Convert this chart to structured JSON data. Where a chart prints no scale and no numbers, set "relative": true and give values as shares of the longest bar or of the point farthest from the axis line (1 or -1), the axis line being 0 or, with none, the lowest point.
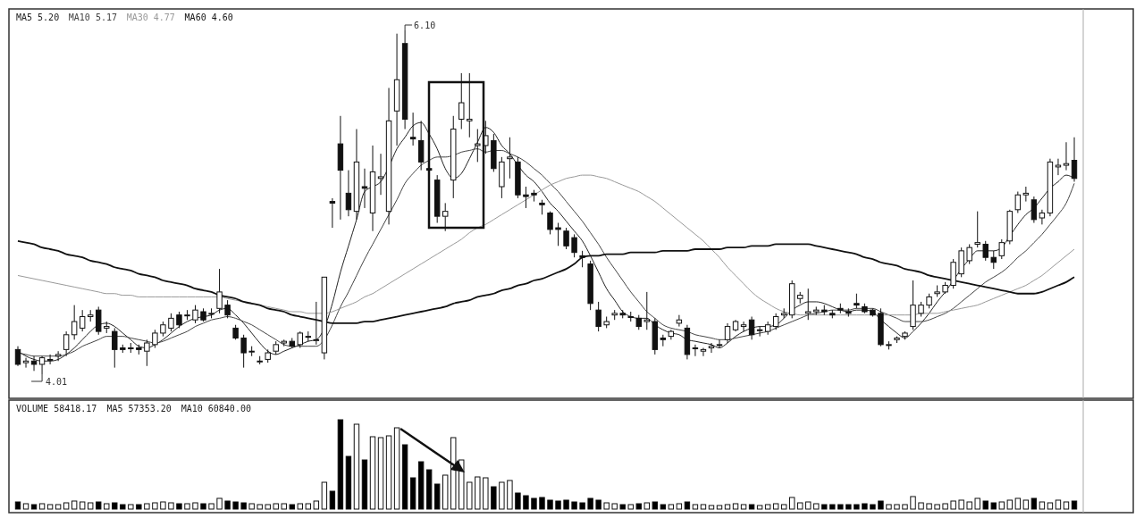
{
  "chart_data": [
    {
      "type": "candlestick",
      "categories": [
        null,
        null,
        null,
        null,
        null,
        null,
        null,
        null,
        null,
        null,
        null,
        null,
        null,
        null,
        null,
        null,
        null,
        null,
        null,
        null,
        null,
        null,
        null,
        null,
        null,
        null,
        null,
        null,
        null,
        null,
        null,
        null,
        null,
        null,
        null,
        null,
        null,
        null,
        null,
        null,
        null,
        null,
        null,
        null,
        null,
        null,
        null,
        null,
        null,
        null,
        null,
        null,
        null,
        null,
        null,
        null,
        null,
        null,
        null,
        null,
        null,
        null,
        null,
        null,
        null,
        null,
        null,
        null,
        null,
        null,
        null,
        null,
        null,
        null,
        null,
        null,
        null,
        null,
        null,
        null,
        null,
        null,
        null,
        null,
        null,
        null,
        null,
        null,
        null,
        null,
        null,
        null,
        null,
        null,
        null,
        null,
        null,
        null,
        null,
        null,
        null,
        null,
        null,
        null,
        null,
        null,
        null,
        null,
        null,
        null,
        null,
        null,
        null,
        null,
        null,
        null,
        null,
        null,
        null,
        null,
        null,
        null,
        null,
        null,
        null,
        null,
        null,
        null,
        null,
        null,
        null,
        null
      ],
      "ohlc": [
        [
          4.16,
          4.18,
          4.06,
          4.07
        ],
        [
          4.08,
          4.11,
          4.05,
          4.09
        ],
        [
          4.09,
          4.12,
          4.03,
          4.07
        ],
        [
          4.07,
          4.12,
          4.01,
          4.11
        ],
        [
          4.1,
          4.13,
          4.07,
          4.1
        ],
        [
          4.12,
          4.15,
          4.09,
          4.13
        ],
        [
          4.16,
          4.27,
          4.12,
          4.25
        ],
        [
          4.25,
          4.43,
          4.22,
          4.33
        ],
        [
          4.29,
          4.4,
          4.27,
          4.36
        ],
        [
          4.36,
          4.4,
          4.33,
          4.37
        ],
        [
          4.4,
          4.42,
          4.25,
          4.27
        ],
        [
          4.29,
          4.33,
          4.26,
          4.3
        ],
        [
          4.27,
          4.29,
          4.05,
          4.16
        ],
        [
          4.17,
          4.19,
          4.14,
          4.16
        ],
        [
          4.17,
          4.2,
          4.14,
          4.17
        ],
        [
          4.17,
          4.19,
          4.13,
          4.16
        ],
        [
          4.15,
          4.22,
          4.06,
          4.2
        ],
        [
          4.19,
          4.28,
          4.17,
          4.26
        ],
        [
          4.26,
          4.33,
          4.24,
          4.31
        ],
        [
          4.29,
          4.38,
          4.27,
          4.35
        ],
        [
          4.37,
          4.39,
          4.29,
          4.31
        ],
        [
          4.37,
          4.4,
          4.34,
          4.37
        ],
        [
          4.34,
          4.43,
          4.32,
          4.4
        ],
        [
          4.39,
          4.41,
          4.33,
          4.34
        ],
        [
          4.38,
          4.41,
          4.35,
          4.38
        ],
        [
          4.41,
          4.65,
          4.38,
          4.51
        ],
        [
          4.43,
          4.46,
          4.35,
          4.37
        ],
        [
          4.29,
          4.31,
          4.22,
          4.23
        ],
        [
          4.23,
          4.25,
          4.05,
          4.14
        ],
        [
          4.15,
          4.18,
          4.12,
          4.15
        ],
        [
          4.09,
          4.12,
          4.07,
          4.09
        ],
        [
          4.1,
          4.16,
          4.08,
          4.14
        ],
        [
          4.15,
          4.21,
          4.13,
          4.19
        ],
        [
          4.2,
          4.22,
          4.18,
          4.21
        ],
        [
          4.21,
          4.23,
          4.17,
          4.18
        ],
        [
          4.19,
          4.27,
          4.17,
          4.26
        ],
        [
          4.24,
          4.27,
          4.21,
          4.24
        ],
        [
          4.22,
          4.45,
          4.19,
          4.22
        ],
        [
          4.14,
          4.6,
          4.1,
          4.6
        ],
        [
          5.06,
          5.08,
          4.9,
          5.05
        ],
        [
          5.41,
          5.58,
          4.95,
          5.25
        ],
        [
          5.11,
          5.25,
          4.97,
          5.01
        ],
        [
          5.0,
          5.5,
          4.95,
          5.3
        ],
        [
          5.15,
          5.26,
          5.02,
          5.14
        ],
        [
          4.99,
          5.4,
          4.88,
          5.24
        ],
        [
          5.2,
          5.35,
          5.1,
          5.21
        ],
        [
          5.0,
          5.75,
          4.92,
          5.55
        ],
        [
          5.61,
          6.08,
          5.4,
          5.8
        ],
        [
          6.02,
          6.1,
          5.5,
          5.56
        ],
        [
          5.45,
          5.6,
          5.4,
          5.44
        ],
        [
          5.43,
          5.55,
          5.25,
          5.3
        ],
        [
          5.26,
          5.45,
          5.22,
          5.25
        ],
        [
          5.19,
          5.22,
          4.93,
          4.97
        ],
        [
          4.97,
          5.05,
          4.88,
          5.0
        ],
        [
          5.19,
          5.58,
          5.08,
          5.5
        ],
        [
          5.56,
          5.84,
          5.5,
          5.66
        ],
        [
          5.55,
          5.84,
          5.45,
          5.56
        ],
        [
          5.4,
          5.5,
          5.3,
          5.41
        ],
        [
          5.4,
          5.55,
          5.35,
          5.46
        ],
        [
          5.43,
          5.47,
          5.24,
          5.26
        ],
        [
          5.15,
          5.33,
          5.08,
          5.3
        ],
        [
          5.32,
          5.45,
          5.2,
          5.33
        ],
        [
          5.3,
          5.33,
          5.08,
          5.1
        ],
        [
          5.1,
          5.15,
          5.02,
          5.09
        ],
        [
          5.11,
          5.13,
          5.06,
          5.1
        ],
        [
          5.05,
          5.07,
          4.98,
          5.04
        ],
        [
          4.99,
          5.0,
          4.86,
          4.89
        ],
        [
          4.9,
          4.93,
          4.79,
          4.89
        ],
        [
          4.88,
          4.9,
          4.77,
          4.79
        ],
        [
          4.84,
          4.86,
          4.72,
          4.75
        ],
        [
          4.73,
          4.76,
          4.66,
          4.72
        ],
        [
          4.68,
          4.7,
          4.4,
          4.44
        ],
        [
          4.4,
          4.45,
          4.27,
          4.3
        ],
        [
          4.31,
          4.36,
          4.29,
          4.33
        ],
        [
          4.37,
          4.4,
          4.34,
          4.38
        ],
        [
          4.38,
          4.4,
          4.35,
          4.37
        ],
        [
          4.36,
          4.39,
          4.33,
          4.36
        ],
        [
          4.35,
          4.37,
          4.28,
          4.3
        ],
        [
          4.33,
          4.51,
          4.28,
          4.34
        ],
        [
          4.33,
          4.35,
          4.13,
          4.16
        ],
        [
          4.23,
          4.25,
          4.18,
          4.22
        ],
        [
          4.24,
          4.28,
          4.22,
          4.27
        ],
        [
          4.32,
          4.37,
          4.3,
          4.34
        ],
        [
          4.29,
          4.31,
          4.1,
          4.13
        ],
        [
          4.17,
          4.19,
          4.12,
          4.17
        ],
        [
          4.15,
          4.17,
          4.12,
          4.16
        ],
        [
          4.17,
          4.2,
          4.14,
          4.18
        ],
        [
          4.19,
          4.22,
          4.17,
          4.19
        ],
        [
          4.22,
          4.32,
          4.2,
          4.3
        ],
        [
          4.28,
          4.34,
          4.27,
          4.33
        ],
        [
          4.3,
          4.33,
          4.27,
          4.31
        ],
        [
          4.34,
          4.36,
          4.22,
          4.25
        ],
        [
          4.28,
          4.3,
          4.24,
          4.28
        ],
        [
          4.27,
          4.33,
          4.25,
          4.31
        ],
        [
          4.3,
          4.38,
          4.28,
          4.36
        ],
        [
          4.37,
          4.41,
          4.35,
          4.38
        ],
        [
          4.37,
          4.58,
          4.35,
          4.56
        ],
        [
          4.47,
          4.51,
          4.44,
          4.49
        ],
        [
          4.38,
          4.53,
          4.34,
          4.39
        ],
        [
          4.39,
          4.42,
          4.37,
          4.4
        ],
        [
          4.4,
          4.43,
          4.37,
          4.39
        ],
        [
          4.38,
          4.4,
          4.35,
          4.37
        ],
        [
          4.41,
          4.44,
          4.38,
          4.4
        ],
        [
          4.39,
          4.41,
          4.36,
          4.38
        ],
        [
          4.44,
          4.5,
          4.41,
          4.43
        ],
        [
          4.42,
          4.44,
          4.38,
          4.39
        ],
        [
          4.4,
          4.41,
          4.36,
          4.37
        ],
        [
          4.38,
          4.41,
          4.18,
          4.19
        ],
        [
          4.19,
          4.21,
          4.16,
          4.19
        ],
        [
          4.22,
          4.24,
          4.2,
          4.23
        ],
        [
          4.24,
          4.27,
          4.22,
          4.26
        ],
        [
          4.3,
          4.58,
          4.28,
          4.43
        ],
        [
          4.38,
          4.45,
          4.36,
          4.43
        ],
        [
          4.43,
          4.5,
          4.41,
          4.48
        ],
        [
          4.5,
          4.55,
          4.48,
          4.51
        ],
        [
          4.51,
          4.57,
          4.5,
          4.55
        ],
        [
          4.55,
          4.71,
          4.53,
          4.69
        ],
        [
          4.62,
          4.78,
          4.6,
          4.76
        ],
        [
          4.7,
          4.8,
          4.68,
          4.78
        ],
        [
          4.8,
          5.0,
          4.78,
          4.81
        ],
        [
          4.8,
          4.82,
          4.7,
          4.72
        ],
        [
          4.72,
          4.76,
          4.65,
          4.69
        ],
        [
          4.73,
          4.83,
          4.71,
          4.81
        ],
        [
          4.82,
          5.01,
          4.8,
          5.0
        ],
        [
          5.01,
          5.12,
          4.99,
          5.1
        ],
        [
          5.1,
          5.15,
          5.06,
          5.11
        ],
        [
          5.07,
          5.09,
          4.93,
          4.95
        ],
        [
          4.96,
          5.01,
          4.92,
          4.99
        ],
        [
          4.99,
          5.32,
          4.97,
          5.3
        ],
        [
          5.27,
          5.32,
          5.22,
          5.28
        ],
        [
          5.28,
          5.42,
          5.25,
          5.29
        ],
        [
          5.31,
          5.45,
          5.18,
          5.2
        ]
      ],
      "series": [
        {
          "type": "line",
          "name": "MA5 5.20",
          "color": "#222222",
          "values": [
            4.15,
            4.12,
            4.1,
            4.09,
            4.09,
            4.1,
            4.13,
            4.17,
            4.22,
            4.27,
            4.31,
            4.32,
            4.3,
            4.26,
            4.22,
            4.18,
            4.17,
            4.19,
            4.22,
            4.26,
            4.3,
            4.33,
            4.35,
            4.36,
            4.37,
            4.4,
            4.41,
            4.37,
            4.32,
            4.26,
            4.2,
            4.15,
            4.13,
            4.15,
            4.17,
            4.19,
            4.21,
            4.22,
            4.29,
            4.44,
            4.63,
            4.79,
            4.95,
            5.12,
            5.15,
            5.18,
            5.27,
            5.38,
            5.45,
            5.52,
            5.54,
            5.47,
            5.38,
            5.26,
            5.2,
            5.23,
            5.32,
            5.42,
            5.51,
            5.48,
            5.4,
            5.35,
            5.28,
            5.22,
            5.18,
            5.12,
            5.05,
            5.0,
            4.94,
            4.88,
            4.82,
            4.73,
            4.63,
            4.53,
            4.46,
            4.39,
            4.36,
            4.35,
            4.35,
            4.31,
            4.28,
            4.26,
            4.25,
            4.22,
            4.21,
            4.2,
            4.19,
            4.17,
            4.2,
            4.24,
            4.27,
            4.29,
            4.3,
            4.3,
            4.31,
            4.35,
            4.4,
            4.43,
            4.45,
            4.45,
            4.44,
            4.42,
            4.4,
            4.39,
            4.4,
            4.4,
            4.39,
            4.34,
            4.3,
            4.26,
            4.23,
            4.27,
            4.32,
            4.38,
            4.45,
            4.51,
            4.58,
            4.65,
            4.71,
            4.76,
            4.76,
            4.76,
            4.78,
            4.85,
            4.92,
            4.98,
            5.02,
            5.08,
            5.14,
            5.18,
            5.22,
            5.2
          ]
        },
        {
          "type": "line",
          "name": "MA10 5.17",
          "color": "#444444",
          "values": [
            4.14,
            4.13,
            4.12,
            4.12,
            4.12,
            4.12,
            4.13,
            4.15,
            4.18,
            4.2,
            4.22,
            4.24,
            4.24,
            4.24,
            4.23,
            4.22,
            4.21,
            4.2,
            4.21,
            4.23,
            4.25,
            4.27,
            4.3,
            4.32,
            4.34,
            4.35,
            4.36,
            4.35,
            4.33,
            4.31,
            4.28,
            4.25,
            4.22,
            4.19,
            4.18,
            4.18,
            4.18,
            4.18,
            4.22,
            4.31,
            4.42,
            4.51,
            4.61,
            4.71,
            4.8,
            4.89,
            4.98,
            5.07,
            5.17,
            5.23,
            5.28,
            5.31,
            5.33,
            5.33,
            5.34,
            5.36,
            5.37,
            5.38,
            5.36,
            5.37,
            5.37,
            5.35,
            5.33,
            5.3,
            5.26,
            5.22,
            5.17,
            5.12,
            5.06,
            5.0,
            4.94,
            4.87,
            4.8,
            4.72,
            4.65,
            4.58,
            4.51,
            4.45,
            4.39,
            4.35,
            4.31,
            4.29,
            4.28,
            4.27,
            4.25,
            4.24,
            4.23,
            4.22,
            4.22,
            4.23,
            4.24,
            4.25,
            4.26,
            4.27,
            4.29,
            4.31,
            4.33,
            4.35,
            4.37,
            4.38,
            4.39,
            4.4,
            4.4,
            4.4,
            4.41,
            4.41,
            4.41,
            4.39,
            4.37,
            4.35,
            4.33,
            4.33,
            4.33,
            4.34,
            4.36,
            4.38,
            4.41,
            4.45,
            4.49,
            4.53,
            4.57,
            4.6,
            4.63,
            4.67,
            4.72,
            4.76,
            4.81,
            4.86,
            4.92,
            4.98,
            5.05,
            5.17
          ]
        },
        {
          "type": "line",
          "name": "MA30 4.77",
          "color": "#999999",
          "values": [
            4.61,
            4.6,
            4.59,
            4.58,
            4.57,
            4.56,
            4.55,
            4.54,
            4.53,
            4.52,
            4.51,
            4.5,
            4.5,
            4.49,
            4.49,
            4.48,
            4.48,
            4.48,
            4.48,
            4.48,
            4.48,
            4.48,
            4.48,
            4.48,
            4.48,
            4.48,
            4.47,
            4.46,
            4.45,
            4.44,
            4.43,
            4.42,
            4.41,
            4.4,
            4.39,
            4.39,
            4.38,
            4.38,
            4.38,
            4.39,
            4.41,
            4.43,
            4.45,
            4.48,
            4.5,
            4.53,
            4.56,
            4.59,
            4.62,
            4.65,
            4.68,
            4.71,
            4.74,
            4.77,
            4.8,
            4.83,
            4.87,
            4.9,
            4.92,
            4.95,
            4.98,
            5.01,
            5.04,
            5.07,
            5.1,
            5.13,
            5.16,
            5.18,
            5.2,
            5.21,
            5.22,
            5.22,
            5.21,
            5.2,
            5.18,
            5.16,
            5.14,
            5.12,
            5.09,
            5.06,
            5.02,
            4.98,
            4.94,
            4.9,
            4.86,
            4.82,
            4.77,
            4.72,
            4.66,
            4.61,
            4.56,
            4.51,
            4.47,
            4.44,
            4.41,
            4.39,
            4.38,
            4.37,
            4.37,
            4.37,
            4.37,
            4.37,
            4.37,
            4.37,
            4.37,
            4.37,
            4.37,
            4.37,
            4.37,
            4.37,
            4.37,
            4.37,
            4.38,
            4.38,
            4.38,
            4.39,
            4.4,
            4.41,
            4.42,
            4.43,
            4.45,
            4.47,
            4.49,
            4.51,
            4.53,
            4.55,
            4.58,
            4.61,
            4.65,
            4.69,
            4.73,
            4.77
          ]
        },
        {
          "type": "line",
          "name": "MA60 4.60",
          "color": "#111111",
          "values": [
            4.82,
            4.81,
            4.8,
            4.78,
            4.77,
            4.76,
            4.74,
            4.73,
            4.72,
            4.7,
            4.69,
            4.68,
            4.66,
            4.65,
            4.64,
            4.62,
            4.61,
            4.6,
            4.58,
            4.57,
            4.56,
            4.55,
            4.53,
            4.52,
            4.51,
            4.49,
            4.48,
            4.47,
            4.45,
            4.44,
            4.43,
            4.41,
            4.4,
            4.39,
            4.37,
            4.36,
            4.35,
            4.34,
            4.33,
            4.32,
            4.32,
            4.32,
            4.32,
            4.33,
            4.33,
            4.34,
            4.35,
            4.36,
            4.37,
            4.38,
            4.39,
            4.4,
            4.41,
            4.42,
            4.44,
            4.45,
            4.46,
            4.48,
            4.49,
            4.5,
            4.52,
            4.53,
            4.55,
            4.56,
            4.58,
            4.59,
            4.61,
            4.63,
            4.65,
            4.68,
            4.72,
            4.73,
            4.73,
            4.74,
            4.74,
            4.74,
            4.75,
            4.75,
            4.75,
            4.75,
            4.76,
            4.76,
            4.76,
            4.76,
            4.77,
            4.77,
            4.77,
            4.77,
            4.78,
            4.78,
            4.78,
            4.79,
            4.79,
            4.79,
            4.8,
            4.8,
            4.8,
            4.8,
            4.8,
            4.79,
            4.78,
            4.77,
            4.76,
            4.75,
            4.74,
            4.72,
            4.71,
            4.69,
            4.68,
            4.67,
            4.65,
            4.64,
            4.63,
            4.61,
            4.6,
            4.59,
            4.58,
            4.57,
            4.56,
            4.55,
            4.54,
            4.53,
            4.52,
            4.51,
            4.5,
            4.5,
            4.5,
            4.51,
            4.53,
            4.55,
            4.57,
            4.6
          ]
        }
      ],
      "legend": "top left",
      "annotations": [
        "6.10",
        "4.01"
      ]
    },
    {
      "type": "bar",
      "relative": true,
      "categories": [
        null,
        null,
        null,
        null,
        null,
        null,
        null,
        null,
        null,
        null,
        null,
        null,
        null,
        null,
        null,
        null,
        null,
        null,
        null,
        null,
        null,
        null,
        null,
        null,
        null,
        null,
        null,
        null,
        null,
        null,
        null,
        null,
        null,
        null,
        null,
        null,
        null,
        null,
        null,
        null,
        null,
        null,
        null,
        null,
        null,
        null,
        null,
        null,
        null,
        null,
        null,
        null,
        null,
        null,
        null,
        null,
        null,
        null,
        null,
        null,
        null,
        null,
        null,
        null,
        null,
        null,
        null,
        null,
        null,
        null,
        null,
        null,
        null,
        null,
        null,
        null,
        null,
        null,
        null,
        null,
        null,
        null,
        null,
        null,
        null,
        null,
        null,
        null,
        null,
        null,
        null,
        null,
        null,
        null,
        null,
        null,
        null,
        null,
        null,
        null,
        null,
        null,
        null,
        null,
        null,
        null,
        null,
        null,
        null,
        null,
        null,
        null,
        null,
        null,
        null,
        null,
        null,
        null,
        null,
        null,
        null,
        null,
        null,
        null,
        null,
        null,
        null,
        null,
        null,
        null,
        null,
        null
      ],
      "values": [
        0.08,
        0.06,
        0.05,
        0.06,
        0.05,
        0.05,
        0.07,
        0.09,
        0.08,
        0.07,
        0.08,
        0.06,
        0.07,
        0.05,
        0.05,
        0.05,
        0.06,
        0.07,
        0.08,
        0.07,
        0.06,
        0.06,
        0.07,
        0.06,
        0.06,
        0.12,
        0.09,
        0.08,
        0.07,
        0.06,
        0.05,
        0.05,
        0.06,
        0.06,
        0.05,
        0.06,
        0.06,
        0.09,
        0.3,
        0.2,
        1.0,
        0.59,
        0.95,
        0.55,
        0.81,
        0.8,
        0.82,
        0.91,
        0.72,
        0.35,
        0.53,
        0.44,
        0.28,
        0.38,
        0.8,
        0.55,
        0.3,
        0.36,
        0.35,
        0.25,
        0.3,
        0.32,
        0.18,
        0.15,
        0.12,
        0.13,
        0.1,
        0.09,
        0.1,
        0.08,
        0.07,
        0.12,
        0.1,
        0.07,
        0.06,
        0.05,
        0.05,
        0.06,
        0.07,
        0.08,
        0.05,
        0.05,
        0.06,
        0.08,
        0.05,
        0.05,
        0.04,
        0.04,
        0.05,
        0.06,
        0.05,
        0.05,
        0.04,
        0.05,
        0.06,
        0.05,
        0.13,
        0.07,
        0.08,
        0.06,
        0.05,
        0.05,
        0.05,
        0.05,
        0.05,
        0.06,
        0.05,
        0.09,
        0.05,
        0.05,
        0.05,
        0.14,
        0.07,
        0.06,
        0.05,
        0.06,
        0.09,
        0.1,
        0.08,
        0.12,
        0.09,
        0.07,
        0.08,
        0.1,
        0.12,
        0.1,
        0.12,
        0.08,
        0.07,
        0.1,
        0.08,
        0.09
      ],
      "colors": [
        "#000000",
        "#ffffff",
        "#000000",
        "#ffffff",
        "#ffffff",
        "#ffffff",
        "#ffffff",
        "#ffffff",
        "#ffffff",
        "#ffffff",
        "#000000",
        "#ffffff",
        "#000000",
        "#000000",
        "#ffffff",
        "#000000",
        "#ffffff",
        "#ffffff",
        "#ffffff",
        "#ffffff",
        "#000000",
        "#ffffff",
        "#ffffff",
        "#000000",
        "#ffffff",
        "#ffffff",
        "#000000",
        "#000000",
        "#000000",
        "#ffffff",
        "#ffffff",
        "#ffffff",
        "#ffffff",
        "#ffffff",
        "#000000",
        "#ffffff",
        "#ffffff",
        "#ffffff",
        "#ffffff",
        "#000000",
        "#000000",
        "#000000",
        "#ffffff",
        "#000000",
        "#ffffff",
        "#ffffff",
        "#ffffff",
        "#ffffff",
        "#000000",
        "#000000",
        "#000000",
        "#000000",
        "#000000",
        "#ffffff",
        "#ffffff",
        "#ffffff",
        "#ffffff",
        "#ffffff",
        "#ffffff",
        "#000000",
        "#ffffff",
        "#ffffff",
        "#000000",
        "#000000",
        "#000000",
        "#000000",
        "#000000",
        "#000000",
        "#000000",
        "#000000",
        "#000000",
        "#000000",
        "#000000",
        "#ffffff",
        "#ffffff",
        "#000000",
        "#ffffff",
        "#000000",
        "#ffffff",
        "#000000",
        "#000000",
        "#ffffff",
        "#ffffff",
        "#000000",
        "#ffffff",
        "#ffffff",
        "#ffffff",
        "#ffffff",
        "#ffffff",
        "#ffffff",
        "#ffffff",
        "#000000",
        "#ffffff",
        "#ffffff",
        "#ffffff",
        "#ffffff",
        "#ffffff",
        "#ffffff",
        "#ffffff",
        "#ffffff",
        "#000000",
        "#000000",
        "#000000",
        "#000000",
        "#000000",
        "#000000",
        "#000000",
        "#000000",
        "#ffffff",
        "#ffffff",
        "#ffffff",
        "#ffffff",
        "#ffffff",
        "#ffffff",
        "#ffffff",
        "#ffffff",
        "#ffffff",
        "#ffffff",
        "#ffffff",
        "#ffffff",
        "#000000",
        "#000000",
        "#ffffff",
        "#ffffff",
        "#ffffff",
        "#ffffff",
        "#000000",
        "#ffffff",
        "#ffffff",
        "#ffffff",
        "#ffffff",
        "#000000"
      ],
      "annotations": [
        "VOLUME 58418.17",
        "MA5 57353.20",
        "MA10 60840.00"
      ]
    }
  ]
}
